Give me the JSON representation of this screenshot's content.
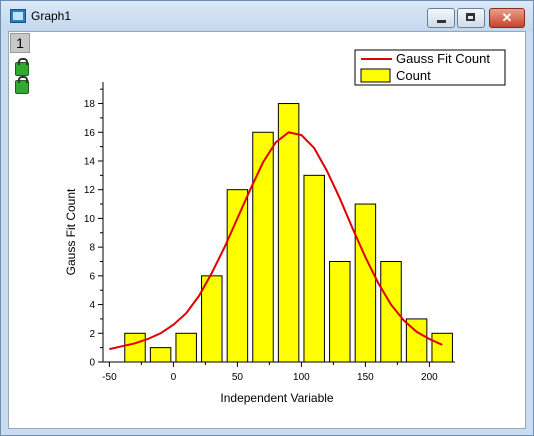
{
  "window": {
    "title": "Graph1",
    "layer_label": "1",
    "close_glyph": "✕"
  },
  "icons": {
    "app": "graph-window-icon",
    "locks": [
      "lock-icon",
      "lock-icon"
    ]
  },
  "chart_data": {
    "type": "bar",
    "xlabel": "Independent Variable",
    "ylabel": "Gauss Fit Count",
    "xlim": [
      -55,
      220
    ],
    "ylim": [
      0,
      19.5
    ],
    "xticks": [
      -50,
      0,
      50,
      100,
      150,
      200
    ],
    "yticks": [
      0,
      2,
      4,
      6,
      8,
      10,
      12,
      14,
      16,
      18
    ],
    "legend_position": "top-right",
    "legend": [
      "Gauss Fit Count",
      "Count"
    ],
    "bar_width": 16,
    "series": [
      {
        "name": "Count",
        "type": "bar",
        "color": "#ffff00",
        "x": [
          -30,
          -10,
          10,
          30,
          50,
          70,
          90,
          110,
          130,
          150,
          170,
          190,
          210
        ],
        "values": [
          2,
          1,
          2,
          6,
          12,
          16,
          18,
          13,
          7,
          11,
          7,
          3,
          2
        ]
      },
      {
        "name": "Gauss Fit Count",
        "type": "line",
        "color": "#e00000",
        "x": [
          -50,
          -40,
          -30,
          -20,
          -10,
          0,
          10,
          20,
          30,
          40,
          50,
          60,
          70,
          80,
          90,
          100,
          110,
          120,
          130,
          140,
          150,
          160,
          170,
          180,
          190,
          200,
          210
        ],
        "values": [
          0.9,
          1.1,
          1.3,
          1.6,
          2.0,
          2.6,
          3.4,
          4.6,
          6.2,
          8.0,
          10.0,
          12.0,
          13.9,
          15.3,
          16.0,
          15.8,
          14.9,
          13.3,
          11.4,
          9.3,
          7.3,
          5.5,
          4.0,
          2.9,
          2.1,
          1.6,
          1.2
        ]
      }
    ]
  }
}
